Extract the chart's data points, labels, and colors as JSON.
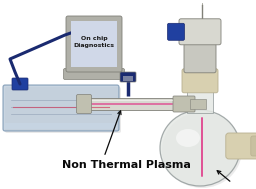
{
  "background_color": "#ffffff",
  "label_text": "Non Thermal Plasma",
  "label_fontsize": 8,
  "label_bold": true,
  "fig_width": 2.56,
  "fig_height": 1.89,
  "dpi": 100,
  "colors": {
    "gray_light": "#d8d8d0",
    "gray_med": "#b0b0a8",
    "gray_dark": "#808078",
    "beige": "#d8d0b0",
    "beige_dark": "#b8b090",
    "beige_mid": "#c8c0a0",
    "blue_dark": "#1a2a70",
    "blue_med": "#2040a0",
    "silver": "#c8c8c0",
    "silver_dark": "#909088",
    "plasma_pink": "#e04890",
    "glass_fill": "#e4e8e4",
    "glass_edge": "#909898",
    "tray_fill": "#b8c8d8",
    "tray_edge": "#6888a8",
    "laptop_body": "#909090",
    "laptop_screen": "#d0d8e8",
    "white": "#f8f8f8",
    "tube_fill": "#d8d8d0",
    "tube_end": "#c0c0b0"
  }
}
